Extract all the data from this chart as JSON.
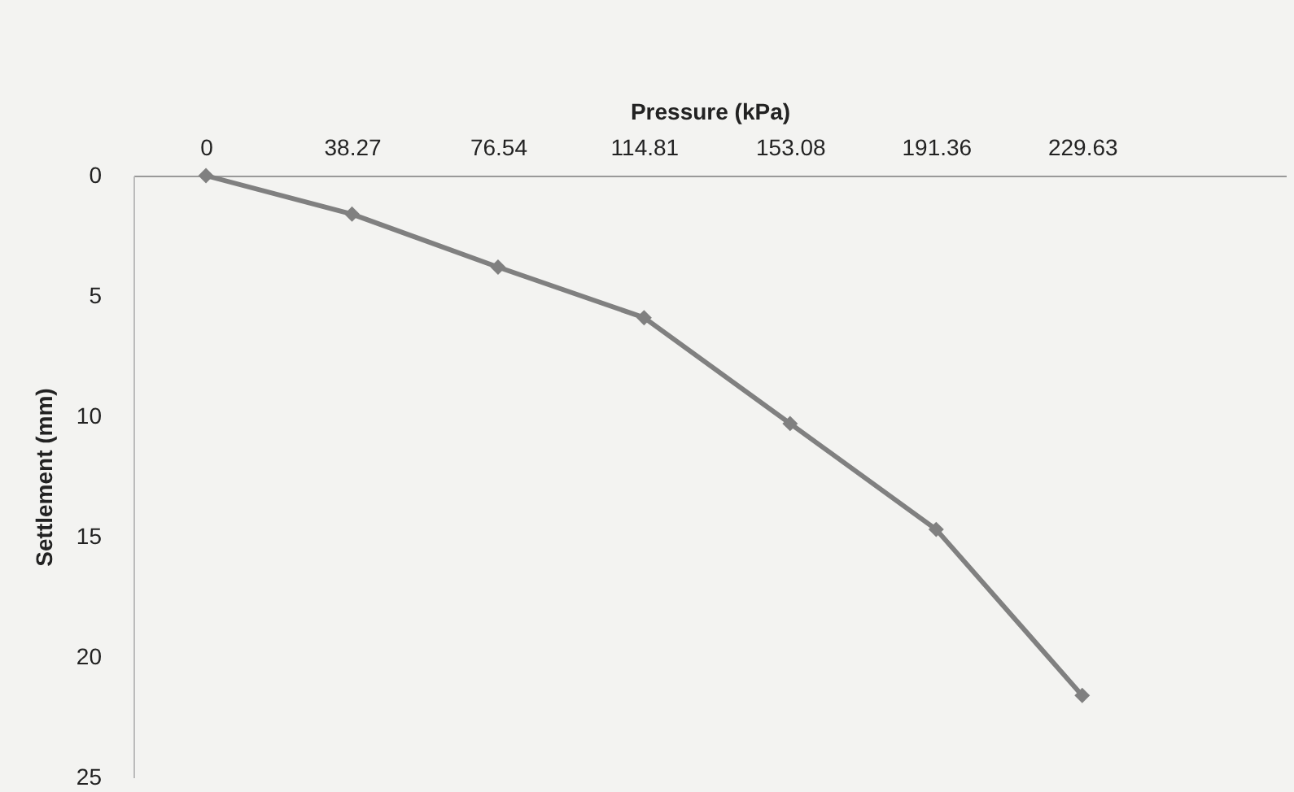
{
  "chart_data": {
    "type": "line",
    "xlabel": "Pressure (kPa)",
    "ylabel": "Settlement (mm)",
    "x": [
      0,
      38.27,
      76.54,
      114.81,
      153.08,
      191.36,
      229.63
    ],
    "series": [
      {
        "color": "#808080",
        "values": [
          0,
          1.6,
          3.8,
          5.9,
          10.3,
          14.7,
          21.6
        ]
      }
    ],
    "xlim": [
      -19,
      283
    ],
    "xticks": [
      0,
      38.27,
      76.54,
      114.81,
      153.08,
      191.36,
      229.63
    ],
    "ylim": [
      25,
      0
    ],
    "yticks": [
      0,
      5,
      10,
      15,
      20,
      25
    ],
    "marker": "diamond",
    "grid": false
  }
}
